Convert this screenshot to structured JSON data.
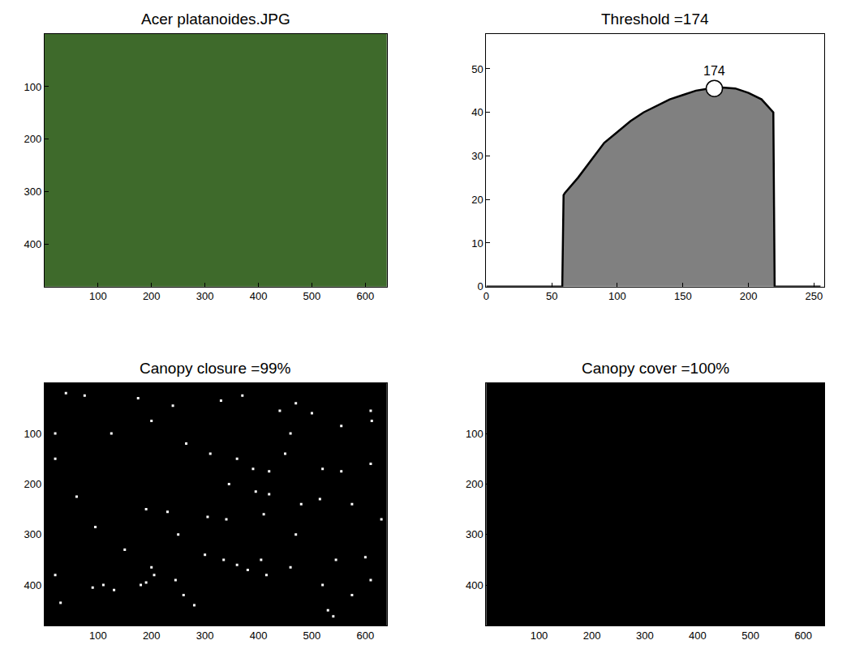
{
  "chart_data": [
    {
      "type": "image",
      "title": "Acer platanoides.JPG",
      "color": "#3e6a2b",
      "xlim": [
        0,
        640
      ],
      "ylim": [
        480,
        0
      ],
      "xticks": [
        100,
        200,
        300,
        400,
        500,
        600
      ],
      "yticks": [
        100,
        200,
        300,
        400
      ]
    },
    {
      "type": "area",
      "title": "Threshold =174",
      "color": "#808080",
      "x": [
        0,
        58,
        59,
        60,
        70,
        80,
        90,
        100,
        110,
        120,
        130,
        140,
        150,
        160,
        170,
        174,
        180,
        190,
        200,
        210,
        219,
        220,
        255
      ],
      "values": [
        0,
        0,
        21,
        21.5,
        25,
        29,
        33,
        35.5,
        38,
        40,
        41.5,
        43,
        44,
        45,
        45.5,
        45.5,
        45.7,
        45.5,
        44.5,
        43,
        40,
        0,
        0
      ],
      "xlim": [
        0,
        258
      ],
      "ylim": [
        0,
        58
      ],
      "xticks": [
        0,
        50,
        100,
        150,
        200,
        250
      ],
      "yticks": [
        0,
        10,
        20,
        30,
        40,
        50
      ],
      "marker": "circle",
      "annotations": [
        {
          "x": 174,
          "y": 45.5,
          "text": "174"
        }
      ]
    },
    {
      "type": "image",
      "title": "Canopy closure =99%",
      "color": "#000000",
      "xlim": [
        0,
        640
      ],
      "ylim": [
        480,
        0
      ],
      "xticks": [
        100,
        200,
        300,
        400,
        500,
        600
      ],
      "yticks": [
        100,
        200,
        300,
        400
      ],
      "series": [
        {
          "type": "scatter",
          "marker": "square",
          "color": "#ffffff",
          "x": [
            40,
            75,
            175,
            240,
            330,
            370,
            440,
            460,
            470,
            500,
            555,
            610,
            612,
            20,
            125,
            200,
            265,
            310,
            360,
            390,
            420,
            450,
            520,
            555,
            610,
            20,
            60,
            190,
            230,
            305,
            340,
            395,
            420,
            480,
            515,
            575,
            630,
            345,
            150,
            200,
            205,
            190,
            180,
            130,
            110,
            90,
            20,
            30,
            260,
            300,
            335,
            360,
            380,
            405,
            415,
            460,
            520,
            545,
            600,
            610,
            575,
            530,
            540,
            245,
            410,
            470,
            95,
            250,
            280
          ],
          "y": [
            20,
            25,
            30,
            45,
            35,
            25,
            55,
            100,
            40,
            60,
            85,
            55,
            75,
            100,
            100,
            75,
            120,
            140,
            150,
            170,
            175,
            140,
            170,
            175,
            160,
            150,
            225,
            250,
            255,
            265,
            270,
            215,
            220,
            240,
            230,
            240,
            270,
            200,
            330,
            365,
            380,
            395,
            400,
            410,
            400,
            405,
            380,
            435,
            420,
            340,
            350,
            360,
            370,
            350,
            380,
            365,
            400,
            350,
            345,
            390,
            420,
            450,
            462,
            390,
            260,
            300,
            285,
            300,
            440
          ]
        }
      ]
    },
    {
      "type": "image",
      "title": "Canopy cover =100%",
      "color": "#000000",
      "xlim": [
        0,
        640
      ],
      "ylim": [
        480,
        0
      ],
      "xticks": [
        100,
        200,
        300,
        400,
        500,
        600
      ],
      "yticks": [
        100,
        200,
        300,
        400
      ]
    }
  ]
}
